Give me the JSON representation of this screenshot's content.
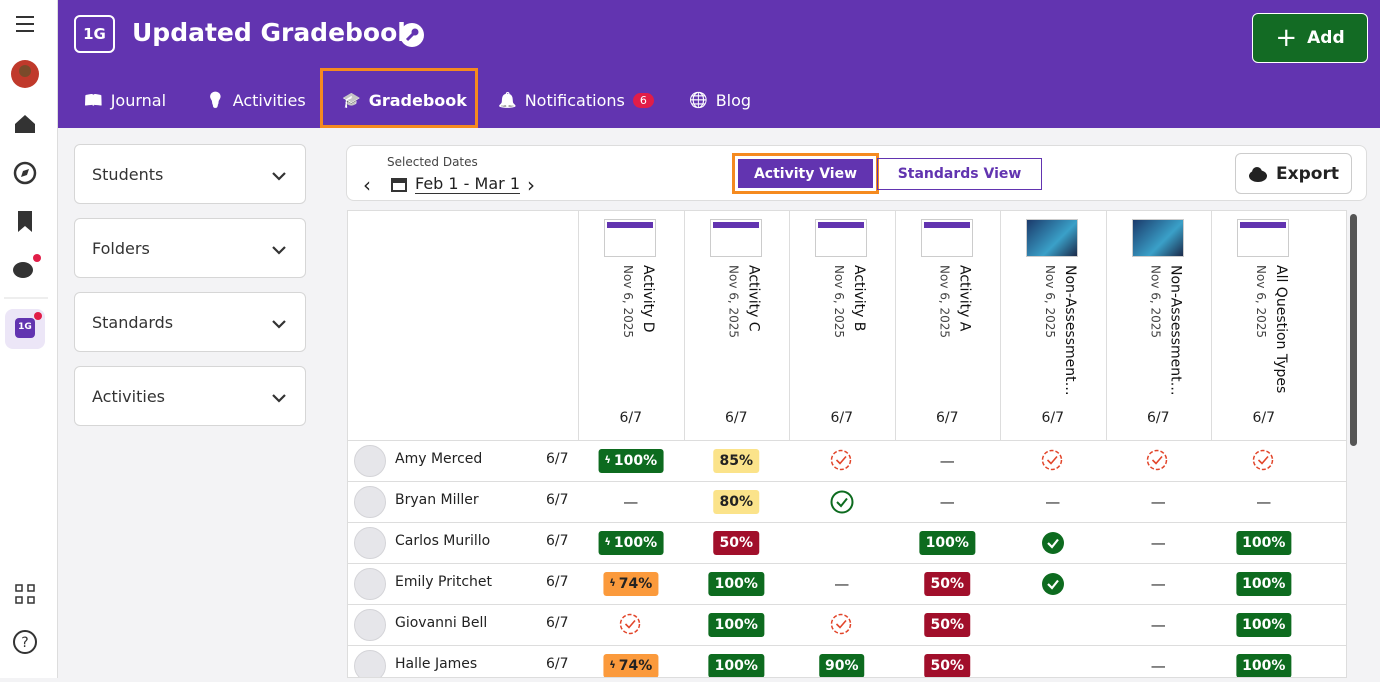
{
  "header": {
    "badge": "1G",
    "title": "Updated Gradebook",
    "add": "Add"
  },
  "nav": [
    {
      "label": "Journal"
    },
    {
      "label": "Activities"
    },
    {
      "label": "Gradebook",
      "active": true
    },
    {
      "label": "Notifications",
      "badge": 6
    },
    {
      "label": "Blog"
    }
  ],
  "rail": {
    "badge": "1G"
  },
  "filters": [
    "Students",
    "Folders",
    "Standards",
    "Activities"
  ],
  "toolbar": {
    "dates_label": "Selected Dates",
    "dates": "Feb 1 - Mar 1",
    "views": [
      "Activity View",
      "Standards View"
    ],
    "export": "Export"
  },
  "table": {
    "columns": [
      {
        "title": "Activity D",
        "date": "Nov 6, 2025",
        "count": "6/7",
        "thumb": "doc"
      },
      {
        "title": "Activity C",
        "date": "Nov 6, 2025",
        "count": "6/7",
        "thumb": "doc"
      },
      {
        "title": "Activity B",
        "date": "Nov 6, 2025",
        "count": "6/7",
        "thumb": "doc"
      },
      {
        "title": "Activity A",
        "date": "Nov 6, 2025",
        "count": "6/7",
        "thumb": "doc"
      },
      {
        "title": "Non-Assessment…",
        "date": "Nov 6, 2025",
        "count": "6/7",
        "thumb": "photo"
      },
      {
        "title": "Non-Assessment…",
        "date": "Nov 6, 2025",
        "count": "6/7",
        "thumb": "photo"
      },
      {
        "title": "All Question Types",
        "date": "Nov 6, 2025",
        "count": "6/7",
        "thumb": "doc"
      }
    ],
    "rows": [
      {
        "name": "Amy Merced",
        "count": "6/7",
        "cells": [
          {
            "text": "100%",
            "style": "green",
            "bolt": true
          },
          {
            "text": "85%",
            "style": "yellow"
          },
          {
            "icon": "pending"
          },
          {
            "text": "—"
          },
          {
            "icon": "pending"
          },
          {
            "icon": "pending"
          },
          {
            "icon": "pending"
          }
        ]
      },
      {
        "name": "Bryan Miller",
        "count": "6/7",
        "cells": [
          {
            "text": "—"
          },
          {
            "text": "80%",
            "style": "yellow"
          },
          {
            "icon": "done"
          },
          {
            "text": "—"
          },
          {
            "text": "—"
          },
          {
            "text": "—"
          },
          {
            "text": "—"
          }
        ]
      },
      {
        "name": "Carlos Murillo",
        "count": "6/7",
        "cells": [
          {
            "text": "100%",
            "style": "green",
            "bolt": true
          },
          {
            "text": "50%",
            "style": "red"
          },
          null,
          {
            "text": "100%",
            "style": "green"
          },
          {
            "icon": "complete"
          },
          {
            "text": "—"
          },
          {
            "text": "100%",
            "style": "green"
          }
        ]
      },
      {
        "name": "Emily Pritchet",
        "count": "6/7",
        "cells": [
          {
            "text": "74%",
            "style": "orange",
            "bolt": true
          },
          {
            "text": "100%",
            "style": "green"
          },
          {
            "text": "—"
          },
          {
            "text": "50%",
            "style": "red"
          },
          {
            "icon": "complete"
          },
          {
            "text": "—"
          },
          {
            "text": "100%",
            "style": "green"
          }
        ]
      },
      {
        "name": "Giovanni Bell",
        "count": "6/7",
        "cells": [
          {
            "icon": "pending"
          },
          {
            "text": "100%",
            "style": "green"
          },
          {
            "icon": "pending"
          },
          {
            "text": "50%",
            "style": "red"
          },
          null,
          {
            "text": "—"
          },
          {
            "text": "100%",
            "style": "green"
          }
        ]
      },
      {
        "name": "Halle James",
        "count": "6/7",
        "cells": [
          {
            "text": "74%",
            "style": "orange",
            "bolt": true
          },
          {
            "text": "100%",
            "style": "green"
          },
          {
            "text": "90%",
            "style": "green"
          },
          {
            "text": "50%",
            "style": "red"
          },
          null,
          {
            "text": "—"
          },
          {
            "text": "100%",
            "style": "green"
          }
        ]
      }
    ]
  }
}
